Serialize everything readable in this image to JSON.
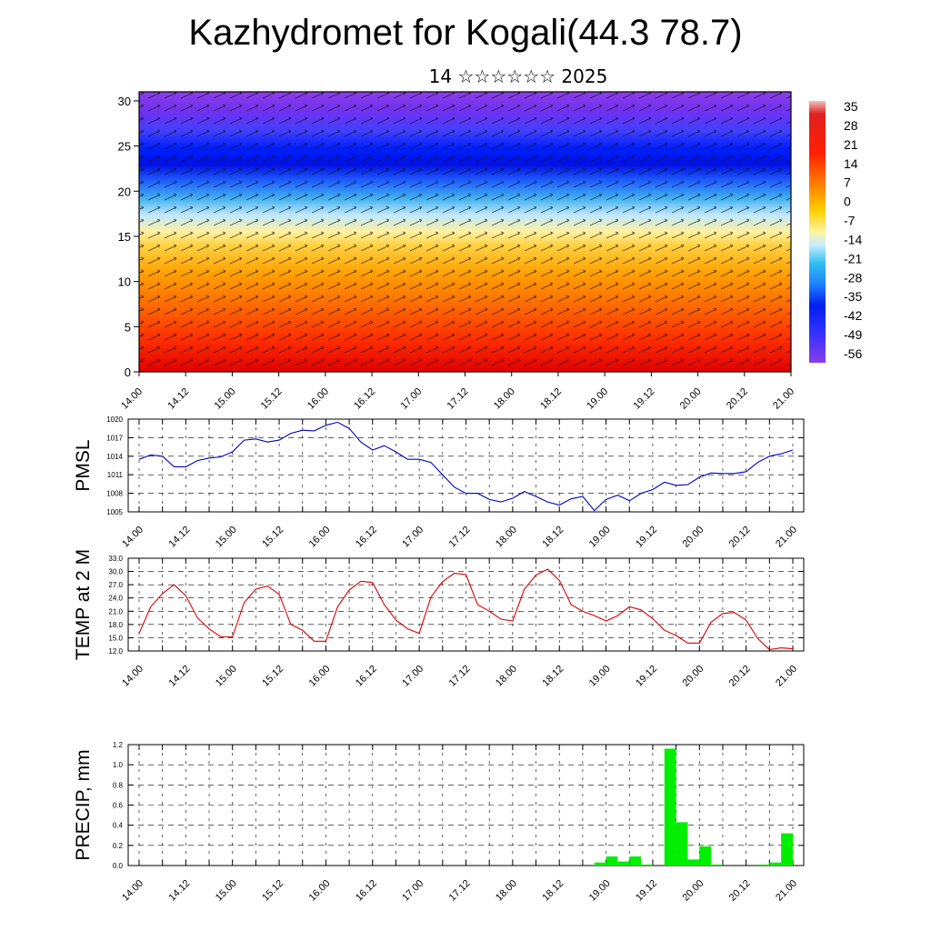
{
  "title": "Kazhydromet for Kogali(44.3 78.7)",
  "date_line": "14 ☆☆☆☆☆☆ 2025",
  "colors": {
    "pmsl_line": "#0000cc",
    "temp_line": "#dd0000",
    "precip_bar": "#00ee00",
    "grid": "#000000"
  },
  "chart_data": [
    {
      "type": "heatmap",
      "title": "",
      "y_ticks": [
        "0",
        "5",
        "10",
        "15",
        "20",
        "25",
        "30"
      ],
      "ylim": [
        0,
        31
      ],
      "x_ticks": [
        "14.00",
        "14.12",
        "15.00",
        "15.12",
        "16.00",
        "16.12",
        "17.00",
        "17.12",
        "18.00",
        "18.12",
        "19.00",
        "19.12",
        "20.00",
        "20.12",
        "21.00"
      ],
      "colorbar_labels": [
        "35",
        "28",
        "21",
        "14",
        "7",
        "0",
        "-7",
        "-14",
        "-21",
        "-28",
        "-35",
        "-42",
        "-49",
        "-56"
      ],
      "colorbar_range": [
        -63,
        42
      ],
      "overlay": "wind vectors"
    },
    {
      "type": "line",
      "ylabel": "PMSL",
      "ylim": [
        1005,
        1020
      ],
      "y_ticks": [
        "1005",
        "1008",
        "1011",
        "1014",
        "1017",
        "1020"
      ],
      "x_ticks": [
        "14.00",
        "14.12",
        "15.00",
        "15.12",
        "16.00",
        "16.12",
        "17.00",
        "17.12",
        "18.00",
        "18.12",
        "19.00",
        "19.12",
        "20.00",
        "20.12",
        "21.00"
      ],
      "x_hours": [
        0,
        3,
        6,
        9,
        12,
        15,
        18,
        21,
        24,
        27,
        30,
        33,
        36,
        39,
        42,
        45,
        48,
        51,
        54,
        57,
        60,
        63,
        66,
        69,
        72,
        75,
        78,
        81,
        84,
        87,
        90,
        93,
        96,
        99,
        102,
        105,
        108,
        111,
        114,
        117,
        120,
        123,
        126,
        129,
        132,
        135,
        138,
        141,
        144,
        147,
        150,
        153,
        156,
        159,
        162,
        165,
        168
      ],
      "values": [
        1013.5,
        1014.2,
        1014,
        1012.3,
        1012.3,
        1013.3,
        1013.7,
        1013.9,
        1014.7,
        1016.6,
        1016.8,
        1016.3,
        1016.6,
        1017.7,
        1018.2,
        1018.1,
        1019,
        1019.5,
        1018.5,
        1016.3,
        1015,
        1015.7,
        1014.7,
        1013.5,
        1013.5,
        1013,
        1011,
        1009,
        1008,
        1008,
        1007,
        1006.6,
        1007.2,
        1008.3,
        1007.5,
        1006.6,
        1006.1,
        1007.1,
        1007.5,
        1005.2,
        1007,
        1007.7,
        1006.8,
        1008,
        1008.6,
        1009.8,
        1009.3,
        1009.4,
        1010.6,
        1011.3,
        1011.2,
        1011.2,
        1011.5,
        1013,
        1014,
        1014.4,
        1015
      ]
    },
    {
      "type": "line",
      "ylabel": "TEMP at 2 M",
      "ylim": [
        12,
        33
      ],
      "y_ticks": [
        "12.0",
        "15.0",
        "18.0",
        "21.0",
        "24.0",
        "27.0",
        "30.0",
        "33.0"
      ],
      "x_ticks": [
        "14.00",
        "14.12",
        "15.00",
        "15.12",
        "16.00",
        "16.12",
        "17.00",
        "17.12",
        "18.00",
        "18.12",
        "19.00",
        "19.12",
        "20.00",
        "20.12",
        "21.00"
      ],
      "x_hours": [
        0,
        3,
        6,
        9,
        12,
        15,
        18,
        21,
        24,
        27,
        30,
        33,
        36,
        39,
        42,
        45,
        48,
        51,
        54,
        57,
        60,
        63,
        66,
        69,
        72,
        75,
        78,
        81,
        84,
        87,
        90,
        93,
        96,
        99,
        102,
        105,
        108,
        111,
        114,
        117,
        120,
        123,
        126,
        129,
        132,
        135,
        138,
        141,
        144,
        147,
        150,
        153,
        156,
        159,
        162,
        165,
        168
      ],
      "values": [
        16,
        22,
        25,
        27,
        24.5,
        19.5,
        17,
        15.2,
        15.2,
        23,
        26,
        26.7,
        24.8,
        18,
        16.7,
        14.2,
        14.2,
        22,
        25.8,
        27.8,
        27.5,
        22.5,
        19,
        17,
        16,
        24.2,
        27.7,
        29.6,
        29.3,
        22.5,
        21,
        19.2,
        18.8,
        26,
        29.2,
        30.5,
        28,
        22.5,
        21,
        20,
        18.8,
        20,
        22,
        21.3,
        19.3,
        16.7,
        15.5,
        13.8,
        13.8,
        18.5,
        20.5,
        20.7,
        19,
        14.8,
        12.3,
        12.7,
        12.5
      ]
    },
    {
      "type": "bar",
      "ylabel": "PRECIP, mm",
      "ylim": [
        0,
        1.2
      ],
      "y_ticks": [
        "0.0",
        "0.2",
        "0.4",
        "0.6",
        "0.8",
        "1.0",
        "1.2"
      ],
      "x_ticks": [
        "14.00",
        "14.12",
        "15.00",
        "15.12",
        "16.00",
        "16.12",
        "17.00",
        "17.12",
        "18.00",
        "18.12",
        "19.00",
        "19.12",
        "20.00",
        "20.12",
        "21.00"
      ],
      "x_hours": [
        120,
        123,
        126,
        129,
        132,
        138,
        141,
        144,
        147,
        150,
        162,
        165,
        168
      ],
      "values": [
        0.03,
        0.09,
        0.04,
        0.09,
        0.01,
        1.16,
        0.43,
        0.06,
        0.19,
        0.01,
        0.01,
        0.03,
        0.32
      ],
      "bar_width_hours": 3
    }
  ]
}
